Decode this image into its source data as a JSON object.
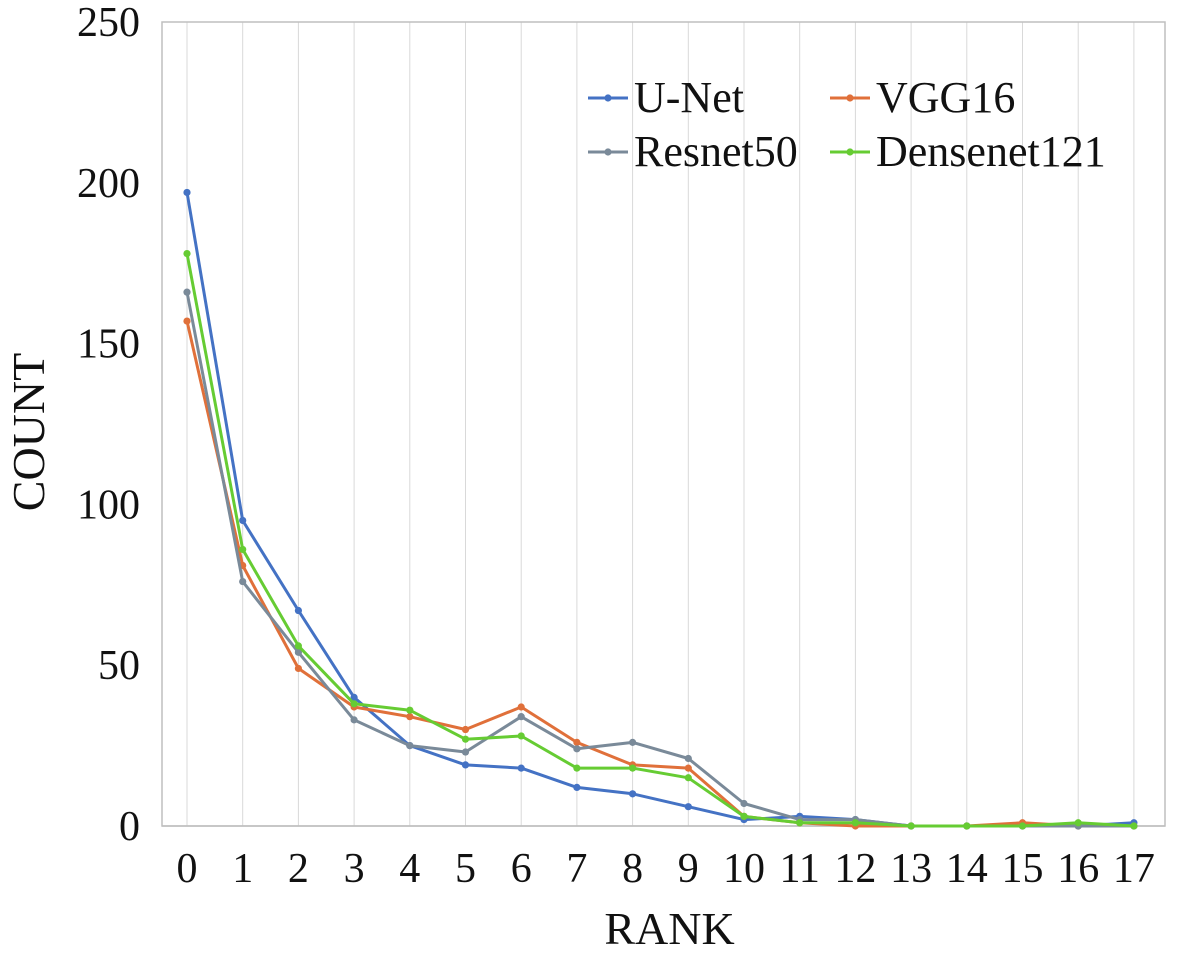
{
  "chart_data": {
    "type": "line",
    "title": "",
    "xlabel": "RANK",
    "ylabel": "COUNT",
    "x": [
      0,
      1,
      2,
      3,
      4,
      5,
      6,
      7,
      8,
      9,
      10,
      11,
      12,
      13,
      14,
      15,
      16,
      17
    ],
    "ylim": [
      0,
      250
    ],
    "yticks": [
      0,
      50,
      100,
      150,
      200,
      250
    ],
    "grid": "vertical",
    "legend_position": "top-right",
    "series": [
      {
        "name": "U-Net",
        "color": "#4472c4",
        "values": [
          197,
          95,
          67,
          40,
          25,
          19,
          18,
          12,
          10,
          6,
          2,
          3,
          2,
          0,
          0,
          0,
          0,
          1
        ]
      },
      {
        "name": "VGG16",
        "color": "#e0703a",
        "values": [
          157,
          81,
          49,
          37,
          34,
          30,
          37,
          26,
          19,
          18,
          3,
          1,
          0,
          0,
          0,
          1,
          0,
          0
        ]
      },
      {
        "name": "Resnet50",
        "color": "#7a8a99",
        "values": [
          166,
          76,
          54,
          33,
          25,
          23,
          34,
          24,
          26,
          21,
          7,
          2,
          2,
          0,
          0,
          0,
          0,
          0
        ]
      },
      {
        "name": "Densenet121",
        "color": "#66cc33",
        "values": [
          178,
          86,
          56,
          38,
          36,
          27,
          28,
          18,
          18,
          15,
          3,
          1,
          1,
          0,
          0,
          0,
          1,
          0
        ]
      }
    ]
  }
}
